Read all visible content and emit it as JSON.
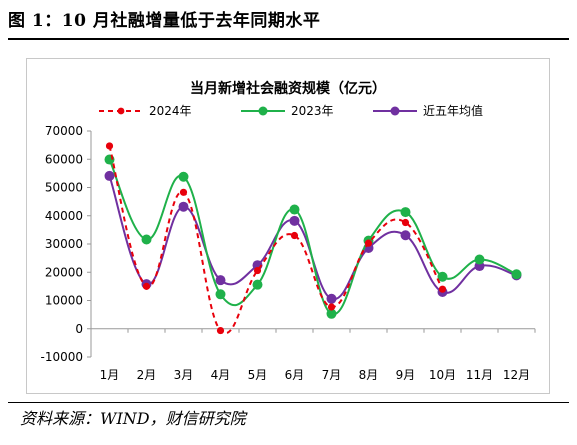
{
  "figure": {
    "title": "图 1：10 月社融增量低于去年同期水平",
    "source": "资料来源：WIND，财信研究院"
  },
  "chart_data": {
    "type": "line",
    "title": "当月新增社会融资规模（亿元）",
    "xlabel": "",
    "ylabel": "",
    "categories": [
      "1月",
      "2月",
      "3月",
      "4月",
      "5月",
      "6月",
      "7月",
      "8月",
      "9月",
      "10月",
      "11月",
      "12月"
    ],
    "ylim": [
      -10000,
      70000
    ],
    "yticks": [
      -10000,
      0,
      10000,
      20000,
      30000,
      40000,
      50000,
      60000,
      70000
    ],
    "grid": false,
    "legend_position": "top",
    "series": [
      {
        "name": "2024年",
        "color": "#e8000b",
        "style": "dashed",
        "marker": "square",
        "values": [
          64700,
          15000,
          48300,
          -650,
          20600,
          33000,
          7700,
          30300,
          37600,
          14000,
          null,
          null
        ]
      },
      {
        "name": "2023年",
        "color": "#1fb14a",
        "style": "solid",
        "marker": "circle",
        "values": [
          59900,
          31600,
          53800,
          12200,
          15600,
          42200,
          5300,
          31200,
          41300,
          18400,
          24500,
          19300
        ]
      },
      {
        "name": "近五年均值",
        "color": "#7030a0",
        "style": "solid",
        "marker": "circle",
        "values": [
          54100,
          15800,
          43200,
          17200,
          22500,
          38200,
          10600,
          28600,
          33100,
          13000,
          22200,
          18900
        ]
      }
    ]
  }
}
